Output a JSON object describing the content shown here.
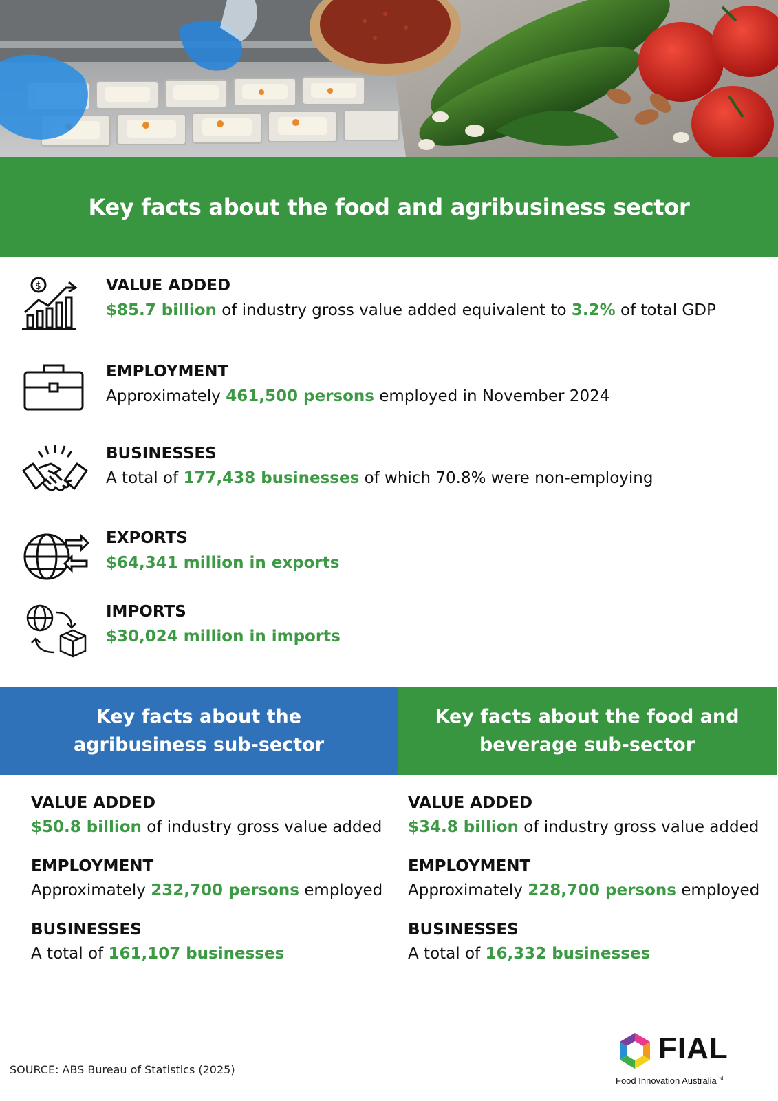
{
  "header": {
    "title": "Key facts about the food and agribusiness sector"
  },
  "facts": [
    {
      "icon": "growth-chart-icon",
      "heading": "VALUE ADDED",
      "parts": [
        {
          "text": "$85.7 billion",
          "hl": true
        },
        {
          "text": " of industry gross value added equivalent to ",
          "hl": false
        },
        {
          "text": "3.2%",
          "hl": true
        },
        {
          "text": " of total GDP",
          "hl": false
        }
      ]
    },
    {
      "icon": "briefcase-icon",
      "heading": "EMPLOYMENT",
      "parts": [
        {
          "text": "Approximately ",
          "hl": false
        },
        {
          "text": "461,500 persons",
          "hl": true
        },
        {
          "text": " employed in November 2024",
          "hl": false
        }
      ]
    },
    {
      "icon": "handshake-icon",
      "heading": "BUSINESSES",
      "parts": [
        {
          "text": "A total of ",
          "hl": false
        },
        {
          "text": "177,438 businesses",
          "hl": true
        },
        {
          "text": " of which 70.8% were non-employing",
          "hl": false
        }
      ]
    },
    {
      "icon": "globe-exchange-icon",
      "heading": "EXPORTS",
      "parts": [
        {
          "text": "$64,341 million in exports",
          "hl": true
        }
      ]
    },
    {
      "icon": "globe-package-icon",
      "heading": "IMPORTS",
      "parts": [
        {
          "text": "$30,024 million in imports",
          "hl": true
        }
      ]
    }
  ],
  "agribusiness": {
    "title": "Key facts about the agribusiness sub-sector",
    "items": [
      {
        "heading": "VALUE ADDED",
        "parts": [
          {
            "text": "$50.8 billion",
            "hl": true
          },
          {
            "text": " of industry gross value added",
            "hl": false
          }
        ]
      },
      {
        "heading": "EMPLOYMENT",
        "parts": [
          {
            "text": "Approximately ",
            "hl": false
          },
          {
            "text": "232,700 persons",
            "hl": true
          },
          {
            "text": " employed",
            "hl": false
          }
        ]
      },
      {
        "heading": "BUSINESSES",
        "parts": [
          {
            "text": "A total of ",
            "hl": false
          },
          {
            "text": "161,107 businesses",
            "hl": true
          }
        ]
      }
    ]
  },
  "food_beverage": {
    "title": "Key facts about the food and beverage sub-sector",
    "items": [
      {
        "heading": "VALUE ADDED",
        "parts": [
          {
            "text": "$34.8 billion",
            "hl": true
          },
          {
            "text": " of industry gross value added",
            "hl": false
          }
        ]
      },
      {
        "heading": "EMPLOYMENT",
        "parts": [
          {
            "text": "Approximately ",
            "hl": false
          },
          {
            "text": "228,700 persons",
            "hl": true
          },
          {
            "text": " employed",
            "hl": false
          }
        ]
      },
      {
        "heading": "BUSINESSES",
        "parts": [
          {
            "text": "A total of ",
            "hl": false
          },
          {
            "text": "16,332 businesses",
            "hl": true
          }
        ]
      }
    ]
  },
  "footer": {
    "source": "SOURCE: ABS Bureau of Statistics (2025)",
    "logo_name": "FIAL",
    "logo_tagline": "Food Innovation Australia",
    "logo_suffix": "Ltd"
  },
  "colors": {
    "green": "#37963f",
    "blue": "#2f72b9",
    "highlight": "#3c9a44"
  }
}
